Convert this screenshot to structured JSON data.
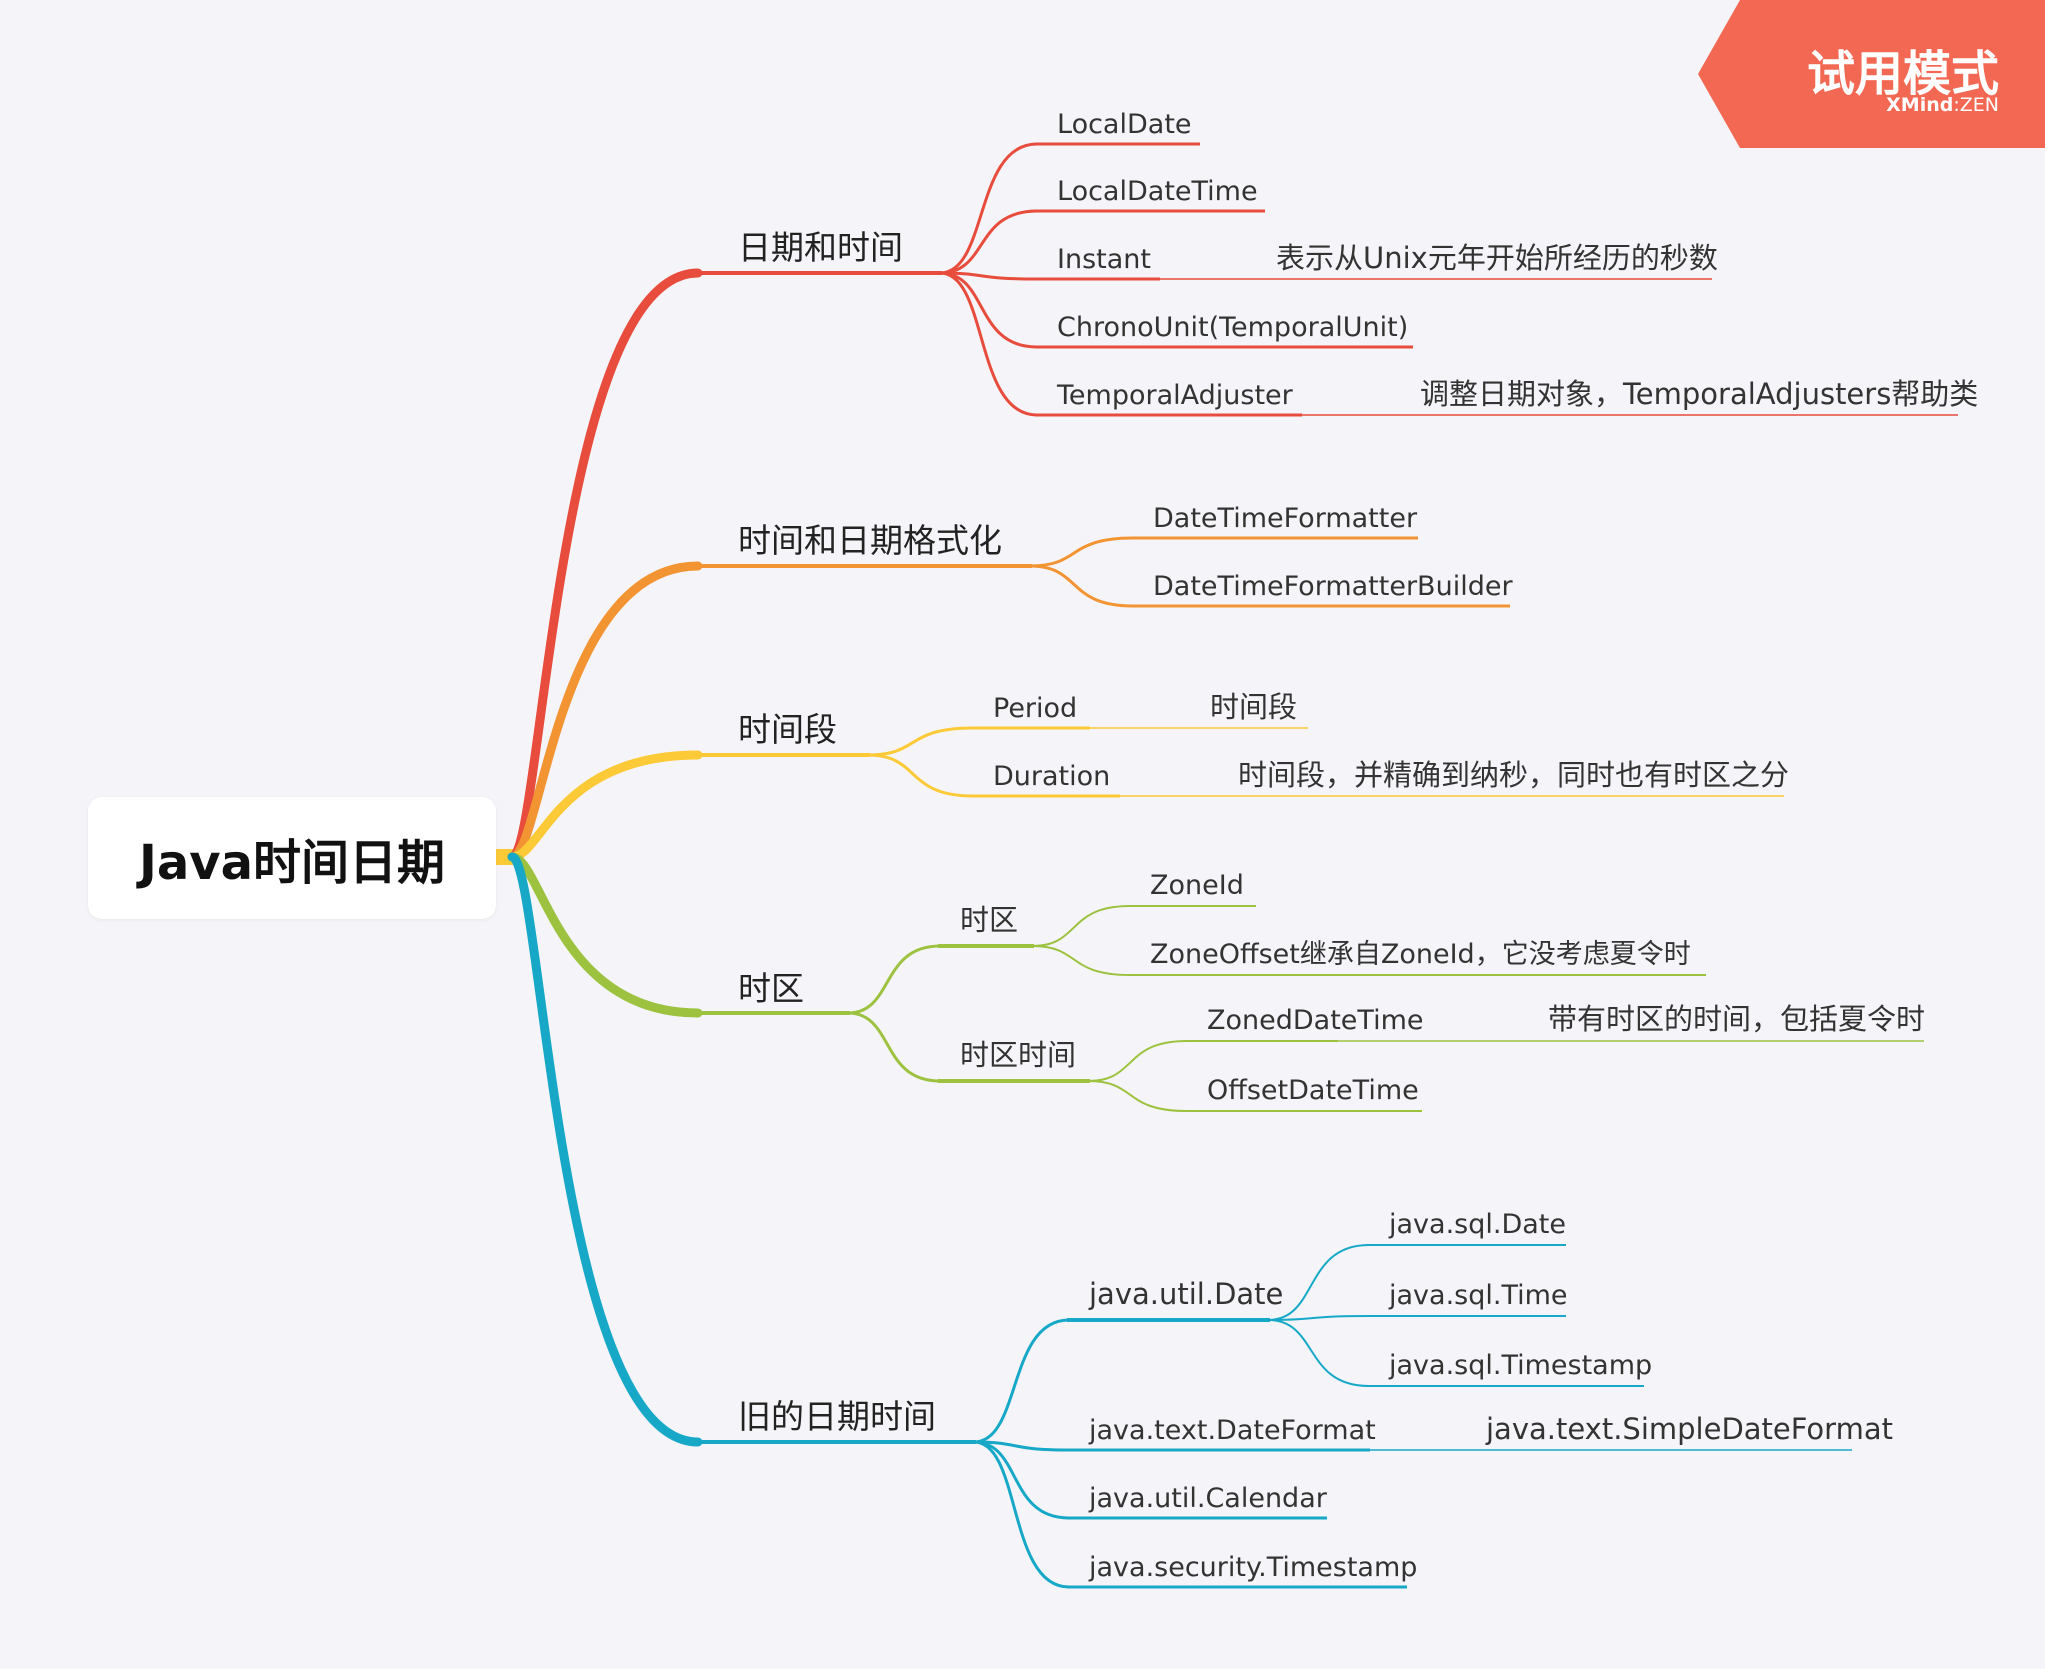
{
  "root": {
    "title": "Java时间日期"
  },
  "trial_badge": {
    "title": "试用模式",
    "brand": "XMind",
    "edition": "ZEN"
  },
  "colors": {
    "red": "#e74c3c",
    "orange": "#f39433",
    "yellow": "#fcc937",
    "green": "#9cc240",
    "cyan": "#17a8c8",
    "badge": "#f26852"
  },
  "branches": [
    {
      "label": "日期和时间",
      "color": "red",
      "children": [
        {
          "label": "LocalDate"
        },
        {
          "label": "LocalDateTime"
        },
        {
          "label": "Instant",
          "note": "表示从Unix元年开始所经历的秒数"
        },
        {
          "label": "ChronoUnit(TemporalUnit)"
        },
        {
          "label": "TemporalAdjuster",
          "note": "调整日期对象，TemporalAdjusters帮助类"
        }
      ]
    },
    {
      "label": "时间和日期格式化",
      "color": "orange",
      "children": [
        {
          "label": "DateTimeFormatter"
        },
        {
          "label": "DateTimeFormatterBuilder"
        }
      ]
    },
    {
      "label": "时间段",
      "color": "yellow",
      "children": [
        {
          "label": "Period",
          "note": "时间段"
        },
        {
          "label": "Duration",
          "note": "时间段，并精确到纳秒，同时也有时区之分"
        }
      ]
    },
    {
      "label": "时区",
      "color": "green",
      "children": [
        {
          "label": "时区",
          "children": [
            {
              "label": "ZoneId"
            },
            {
              "label": "ZoneOffset继承自ZoneId，它没考虑夏令时"
            }
          ]
        },
        {
          "label": "时区时间",
          "children": [
            {
              "label": "ZonedDateTime",
              "note": "带有时区的时间，包括夏令时"
            },
            {
              "label": "OffsetDateTime"
            }
          ]
        }
      ]
    },
    {
      "label": "旧的日期时间",
      "color": "cyan",
      "children": [
        {
          "label": "java.util.Date",
          "children": [
            {
              "label": "java.sql.Date"
            },
            {
              "label": "java.sql.Time"
            },
            {
              "label": "java.sql.Timestamp"
            }
          ]
        },
        {
          "label": "java.text.DateFormat",
          "note": "java.text.SimpleDateFormat"
        },
        {
          "label": "java.util.Calendar"
        },
        {
          "label": "java.security.Timestamp"
        }
      ]
    }
  ]
}
